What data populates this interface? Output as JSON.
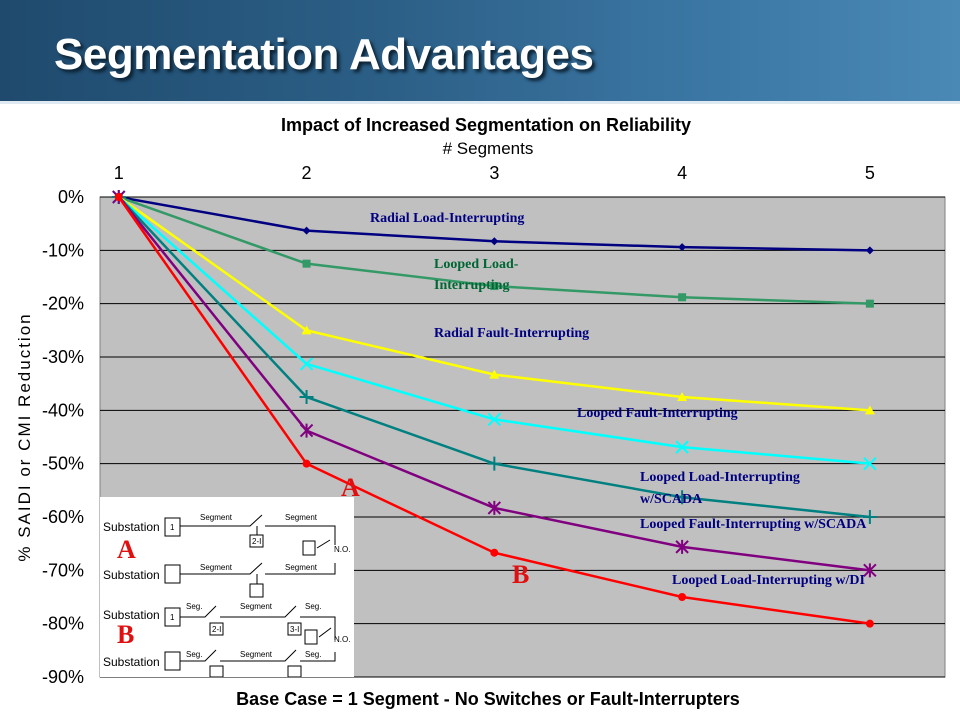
{
  "slide": {
    "title": "Segmentation Advantages"
  },
  "chart_data": {
    "type": "line",
    "title": "Impact of Increased Segmentation on Reliability",
    "xlabel_top": "# Segments",
    "xlabel_bottom": "Base Case = 1 Segment - No Switches or Fault-Interrupters",
    "ylabel": "% SAIDI or CMI Reduction",
    "x": [
      1,
      2,
      3,
      4,
      5
    ],
    "x_tick_labels": [
      "1",
      "2",
      "3",
      "4",
      "5"
    ],
    "y_tick_labels": [
      "0%",
      "-10%",
      "-20%",
      "-30%",
      "-40%",
      "-50%",
      "-60%",
      "-70%",
      "-80%",
      "-90%"
    ],
    "ylim": [
      -90,
      0
    ],
    "grid": "horizontal",
    "plot_background": "#c0c0c0",
    "series": [
      {
        "name": "Radial Load-Interrupting",
        "color": "#000080",
        "marker": "diamond",
        "values": [
          0,
          -6.3,
          -8.3,
          -9.4,
          -10
        ]
      },
      {
        "name": "Looped Load-Interrupting",
        "color": "#339966",
        "marker": "square",
        "values": [
          0,
          -12.5,
          -16.7,
          -18.8,
          -20
        ]
      },
      {
        "name": "Radial Fault-Interrupting",
        "color": "#ffff00",
        "marker": "triangle",
        "values": [
          0,
          -25,
          -33.3,
          -37.5,
          -40
        ]
      },
      {
        "name": "Looped Fault-Interrupting",
        "color": "#00ffff",
        "marker": "x",
        "values": [
          0,
          -31.3,
          -41.7,
          -46.9,
          -50
        ]
      },
      {
        "name": "Looped Load-Interrupting w/SCADA",
        "color": "#008080",
        "marker": "plus",
        "values": [
          0,
          -37.5,
          -50,
          -56.3,
          -60
        ]
      },
      {
        "name": "Looped Fault-Interrupting w/SCADA",
        "color": "#800080",
        "marker": "star",
        "values": [
          0,
          -43.8,
          -58.3,
          -65.6,
          -70
        ]
      },
      {
        "name": "Looped Load-Interrupting w/DI",
        "color": "#ff0000",
        "marker": "circle",
        "values": [
          0,
          -50,
          -66.7,
          -75,
          -80
        ]
      }
    ],
    "annotations": {
      "radial_load": "Radial Load-Interrupting",
      "looped_load_1": "Looped Load-",
      "looped_load_2": "Interrupting",
      "radial_fault": "Radial Fault-Interrupting",
      "looped_fault": "Looped Fault-Interrupting",
      "looped_load_scada_1": "Looped Load-Interrupting",
      "looped_load_scada_2": "w/SCADA",
      "looped_fault_scada": "Looped Fault-Interrupting w/SCADA",
      "looped_load_di": "Looped Load-Interrupting w/DI",
      "marker_a": "A",
      "marker_b": "B"
    }
  },
  "diagram": {
    "label_a": "A",
    "label_b": "B",
    "rows": [
      {
        "substation": "Substation",
        "seg1": "Segment",
        "seg2": "Segment",
        "box": "1",
        "switch": "2-I",
        "no": "N.O."
      },
      {
        "substation": "Substation",
        "seg1": "Segment",
        "seg2": "Segment"
      },
      {
        "substation": "Substation",
        "seg1": "Seg.",
        "seg2": "Segment",
        "seg3": "Seg.",
        "box": "1",
        "switch1": "2-I",
        "switch2": "3-I",
        "no": "N.O."
      },
      {
        "substation": "Substation",
        "seg1": "Seg.",
        "seg2": "Segment",
        "seg3": "Seg."
      }
    ]
  }
}
